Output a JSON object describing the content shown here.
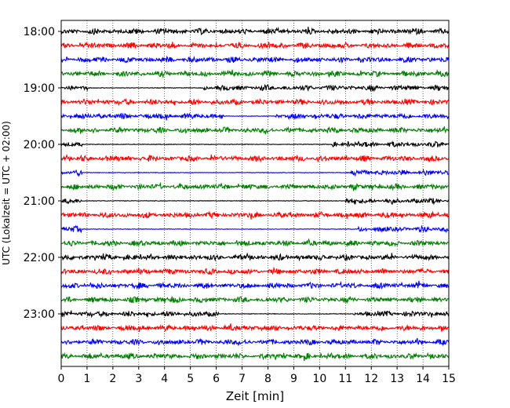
{
  "chart_data": {
    "type": "line",
    "xlabel": "Zeit  [min]",
    "ylabel": "UTC (Lokalzeit = UTC + 02:00)",
    "xlim": [
      0,
      15
    ],
    "x_ticks": [
      "0",
      "1",
      "2",
      "3",
      "4",
      "5",
      "6",
      "7",
      "8",
      "9",
      "10",
      "11",
      "12",
      "13",
      "14",
      "15"
    ],
    "y_ticks": [
      "18:00",
      "19:00",
      "20:00",
      "21:00",
      "22:00",
      "23:00"
    ],
    "grid": "vertical dotted",
    "colors": [
      "#000000",
      "#ff0000",
      "#0000ff",
      "#008000"
    ],
    "traces": [
      {
        "start": "18:00",
        "color": "#000000"
      },
      {
        "start": "18:15",
        "color": "#ff0000"
      },
      {
        "start": "18:30",
        "color": "#0000ff"
      },
      {
        "start": "18:45",
        "color": "#008000"
      },
      {
        "start": "19:00",
        "color": "#000000"
      },
      {
        "start": "19:15",
        "color": "#ff0000"
      },
      {
        "start": "19:30",
        "color": "#0000ff"
      },
      {
        "start": "19:45",
        "color": "#008000"
      },
      {
        "start": "20:00",
        "color": "#000000"
      },
      {
        "start": "20:15",
        "color": "#ff0000"
      },
      {
        "start": "20:30",
        "color": "#0000ff"
      },
      {
        "start": "20:45",
        "color": "#008000"
      },
      {
        "start": "21:00",
        "color": "#000000"
      },
      {
        "start": "21:15",
        "color": "#ff0000"
      },
      {
        "start": "21:30",
        "color": "#0000ff"
      },
      {
        "start": "21:45",
        "color": "#008000"
      },
      {
        "start": "22:00",
        "color": "#000000"
      },
      {
        "start": "22:15",
        "color": "#ff0000"
      },
      {
        "start": "22:30",
        "color": "#0000ff"
      },
      {
        "start": "22:45",
        "color": "#008000"
      },
      {
        "start": "23:00",
        "color": "#000000"
      },
      {
        "start": "23:15",
        "color": "#ff0000"
      },
      {
        "start": "23:30",
        "color": "#0000ff"
      },
      {
        "start": "23:45",
        "color": "#008000"
      }
    ]
  }
}
